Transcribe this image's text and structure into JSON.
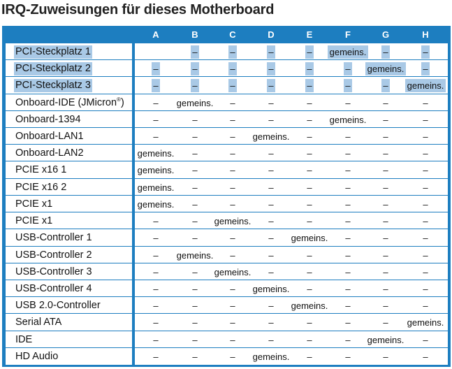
{
  "title": "IRQ-Zuweisungen für dieses Motherboard",
  "table": {
    "columns": [
      "A",
      "B",
      "C",
      "D",
      "E",
      "F",
      "G",
      "H"
    ],
    "rows": [
      {
        "label": "PCI-Steckplatz 1",
        "highlight": true,
        "cells": [
          "",
          "–",
          "–",
          "–",
          "–",
          "gemeins.",
          "–",
          "–"
        ]
      },
      {
        "label": "PCI-Steckplatz 2",
        "highlight": true,
        "cells": [
          "–",
          "–",
          "–",
          "–",
          "–",
          "–",
          "gemeins.",
          "–"
        ]
      },
      {
        "label": "PCI-Steckplatz 3",
        "highlight": true,
        "cells": [
          "–",
          "–",
          "–",
          "–",
          "–",
          "–",
          "–",
          "gemeins."
        ]
      },
      {
        "label": "Onboard-IDE (JMicron®)",
        "highlight": false,
        "cells": [
          "–",
          "gemeins.",
          "–",
          "–",
          "–",
          "–",
          "–",
          "–"
        ]
      },
      {
        "label": "Onboard-1394",
        "highlight": false,
        "cells": [
          "–",
          "–",
          "–",
          "–",
          "–",
          "gemeins.",
          "–",
          "–"
        ]
      },
      {
        "label": "Onboard-LAN1",
        "highlight": false,
        "cells": [
          "–",
          "–",
          "–",
          "gemeins.",
          "–",
          "–",
          "–",
          "–"
        ]
      },
      {
        "label": "Onboard-LAN2",
        "highlight": false,
        "cells": [
          "gemeins.",
          "–",
          "–",
          "–",
          "–",
          "–",
          "–",
          "–"
        ]
      },
      {
        "label": "PCIE x16 1",
        "highlight": false,
        "cells": [
          "gemeins.",
          "–",
          "–",
          "–",
          "–",
          "–",
          "–",
          "–"
        ]
      },
      {
        "label": "PCIE x16 2",
        "highlight": false,
        "cells": [
          "gemeins.",
          "–",
          "–",
          "–",
          "–",
          "–",
          "–",
          "–"
        ]
      },
      {
        "label": "PCIE x1",
        "highlight": false,
        "cells": [
          "gemeins.",
          "–",
          "–",
          "–",
          "–",
          "–",
          "–",
          "–"
        ]
      },
      {
        "label": "PCIE x1",
        "highlight": false,
        "cells": [
          "–",
          "–",
          "gemeins.",
          "–",
          "–",
          "–",
          "–",
          "–"
        ]
      },
      {
        "label": "USB-Controller 1",
        "highlight": false,
        "cells": [
          "–",
          "–",
          "–",
          "–",
          "gemeins.",
          "–",
          "–",
          "–"
        ]
      },
      {
        "label": "USB-Controller 2",
        "highlight": false,
        "cells": [
          "–",
          "gemeins.",
          "–",
          "–",
          "–",
          "–",
          "–",
          "–"
        ]
      },
      {
        "label": "USB-Controller 3",
        "highlight": false,
        "cells": [
          "–",
          "–",
          "gemeins.",
          "–",
          "–",
          "–",
          "–",
          "–"
        ]
      },
      {
        "label": "USB-Controller 4",
        "highlight": false,
        "cells": [
          "–",
          "–",
          "–",
          "gemeins.",
          "–",
          "–",
          "–",
          "–"
        ]
      },
      {
        "label": "USB 2.0-Controller",
        "highlight": false,
        "cells": [
          "–",
          "–",
          "–",
          "–",
          "gemeins.",
          "–",
          "–",
          "–"
        ]
      },
      {
        "label": "Serial ATA",
        "highlight": false,
        "cells": [
          "–",
          "–",
          "–",
          "–",
          "–",
          "–",
          "–",
          "gemeins."
        ]
      },
      {
        "label": "IDE",
        "highlight": false,
        "cells": [
          "–",
          "–",
          "–",
          "–",
          "–",
          "–",
          "gemeins.",
          "–"
        ]
      },
      {
        "label": "HD Audio",
        "highlight": false,
        "cells": [
          "–",
          "–",
          "–",
          "gemeins.",
          "–",
          "–",
          "–",
          "–"
        ]
      }
    ]
  }
}
